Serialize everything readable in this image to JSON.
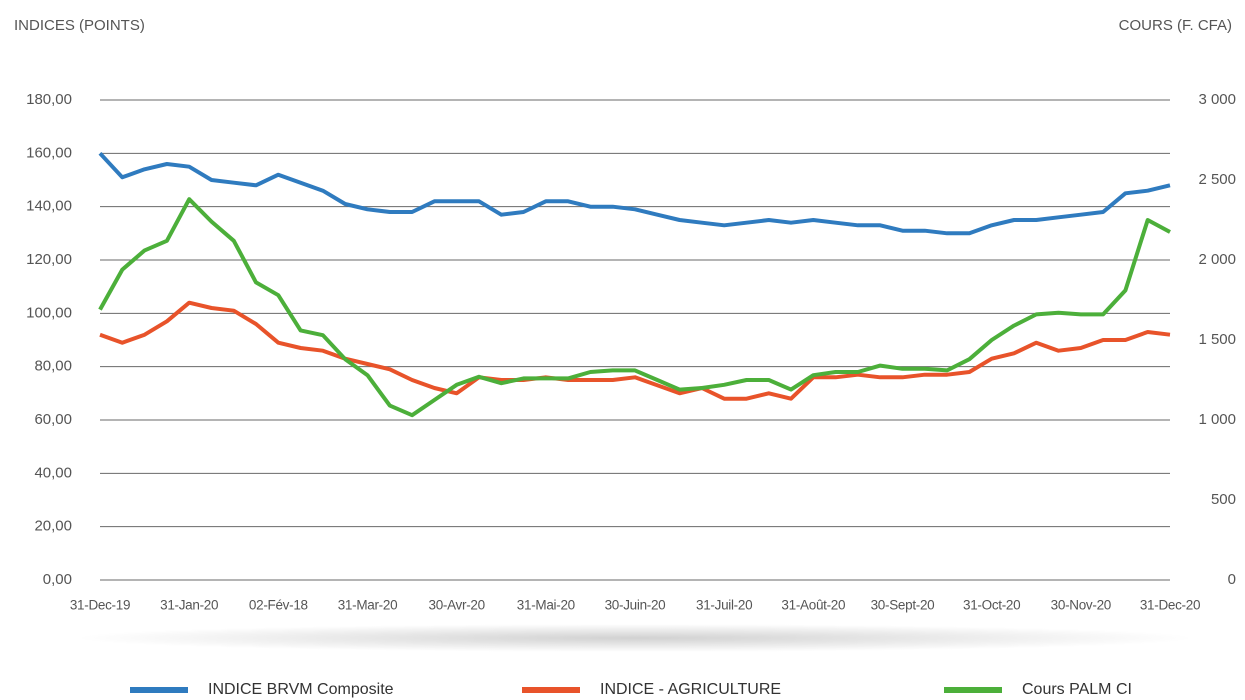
{
  "chart_data": {
    "type": "line",
    "y_label": "INDICES (POINTS)",
    "y2_label": "COURS (F. CFA)",
    "categories": [
      "31-Dec-19",
      null,
      null,
      null,
      "31-Jan-20",
      null,
      null,
      null,
      "02-Fév-18",
      null,
      null,
      null,
      "31-Mar-20",
      null,
      null,
      null,
      "30-Avr-20",
      null,
      null,
      null,
      "31-Mai-20",
      null,
      null,
      null,
      "30-Juin-20",
      null,
      null,
      null,
      "31-Juil-20",
      null,
      null,
      null,
      "31-Août-20",
      null,
      null,
      null,
      "30-Sept-20",
      null,
      null,
      null,
      "31-Oct-20",
      null,
      null,
      null,
      "30-Nov-20",
      null,
      null,
      null,
      "31-Dec-20"
    ],
    "series": [
      {
        "name": "INDICE BRVM Composite",
        "color": "#2f7bbf",
        "values": [
          160,
          151,
          154,
          156,
          155,
          150,
          149,
          148,
          152,
          149,
          146,
          141,
          139,
          138,
          138,
          142,
          142,
          142,
          137,
          138,
          142,
          142,
          140,
          140,
          139,
          137,
          135,
          134,
          133,
          134,
          135,
          134,
          135,
          134,
          133,
          133,
          131,
          131,
          130,
          130,
          133,
          135,
          135,
          136,
          137,
          138,
          145,
          146,
          148
        ]
      },
      {
        "name": "INDICE - AGRICULTURE",
        "color": "#e8532a",
        "values": [
          92,
          89,
          92,
          97,
          104,
          102,
          101,
          96,
          89,
          87,
          86,
          83,
          81,
          79,
          75,
          72,
          70,
          76,
          75,
          75,
          76,
          75,
          75,
          75,
          76,
          73,
          70,
          72,
          68,
          68,
          70,
          68,
          76,
          76,
          77,
          76,
          76,
          77,
          77,
          78,
          83,
          85,
          89,
          86,
          87,
          90,
          90,
          93,
          92
        ]
      },
      {
        "name": "Cours PALM CI",
        "color": "#4caf3a",
        "axis": "y2",
        "values": [
          1690,
          1940,
          2060,
          2120,
          2380,
          2240,
          2120,
          1860,
          1780,
          1560,
          1530,
          1380,
          1280,
          1090,
          1030,
          1125,
          1220,
          1270,
          1230,
          1260,
          1260,
          1260,
          1300,
          1310,
          1310,
          1250,
          1190,
          1200,
          1220,
          1250,
          1250,
          1190,
          1280,
          1300,
          1300,
          1340,
          1320,
          1320,
          1310,
          1380,
          1500,
          1590,
          1660,
          1670,
          1660,
          1660,
          1810,
          2250,
          2175
        ]
      }
    ],
    "ylim": [
      0,
      180
    ],
    "yticks": [
      {
        "value": 0,
        "label": "0,00"
      },
      {
        "value": 20,
        "label": "20,00"
      },
      {
        "value": 40,
        "label": "40,00"
      },
      {
        "value": 60,
        "label": "60,00"
      },
      {
        "value": 80,
        "label": "80,00"
      },
      {
        "value": 100,
        "label": "100,00"
      },
      {
        "value": 120,
        "label": "120,00"
      },
      {
        "value": 140,
        "label": "140,00"
      },
      {
        "value": 160,
        "label": "160,00"
      },
      {
        "value": 180,
        "label": "180,00"
      }
    ],
    "y2lim": [
      0,
      3000
    ],
    "y2ticks": [
      0,
      500,
      {
        "value": 1000,
        "label": "1 000"
      },
      {
        "value": 1500,
        "label": "1 500"
      },
      {
        "value": 2000,
        "label": "2 000"
      },
      {
        "value": 2500,
        "label": "2 500"
      },
      {
        "value": 3000,
        "label": "3 000"
      }
    ],
    "grid": true
  }
}
